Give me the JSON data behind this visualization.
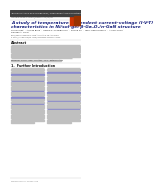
{
  "bg_color": "#ffffff",
  "header_band_color": "#3a3a3a",
  "header_text": "Journal of Alloys and Compounds / Semiconductors in Electronics",
  "header_subtext": "Available online: 14 2018 | elsevier.com/jac/loc",
  "separator_color": "#cccccc",
  "logo_color_left": "#cc3300",
  "logo_color_right": "#993300",
  "title_color": "#1a237e",
  "title_line1": "A study of temperature dependent current-voltage (I-V-T)",
  "title_line2": "characteristics in Ni/sol-gel β-Ga₂O₃/n-GaN structure",
  "author_line1": "Qianyu Hao¹ ·  Alimed Baye¹ ·  Hamid S. Chamganlian¹ ·  Birang Xu¹ ·  Yaser Habermousse¹ ·  Ali Dai Chieh¹",
  "author_line2": "Salabah A. Umar¹",
  "received_text": "Received: 12 February 2018; Accepted: 08 April 2018",
  "published_text": "2. http://xxx.doi.org/10.1016/j.xxx.xxxxx.xxxxx.2018.xxx",
  "abstract_title": "Abstract",
  "section1_title": "1.  Further Introduction",
  "body_text_color": "#555555",
  "line_color": "#bbbbbb",
  "blue_ref_color": "#1a237e",
  "footer_text": "Published online: 30 May 2018"
}
